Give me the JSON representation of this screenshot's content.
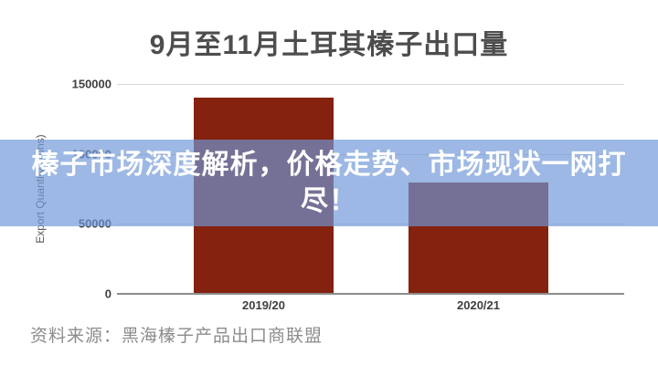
{
  "title": "9月至11月土耳其榛子出口量",
  "overlay": {
    "headline_full": "榛子市场深度解析，价格走势、市场现状一网打尽！",
    "line1": "榛子市场深度解析，价格走势、市场现状一网打",
    "line2": "尽！",
    "band_color": "rgba(110,150,215,0.68)",
    "text_color": "#ffffff"
  },
  "source": {
    "label": "资料来源：黑海榛子产品出口商联盟"
  },
  "chart_data": {
    "type": "bar",
    "title": "9月至11月土耳其榛子出口量",
    "categories": [
      "2019/20",
      "2020/21"
    ],
    "values": [
      140000,
      79500
    ],
    "unit": "Tons",
    "xlabel": "",
    "ylabel": "Export Quantity (Tons)",
    "ylim": [
      0,
      150000
    ],
    "yticks": [
      "150000",
      "100000",
      "50000",
      "0"
    ],
    "ytick_values": [
      150000,
      100000,
      50000,
      0
    ],
    "grid": true,
    "legend": "none",
    "bar_color": "#84220F",
    "gridline_color": "#d6d6d6",
    "axis_color": "#8c8c8c"
  }
}
